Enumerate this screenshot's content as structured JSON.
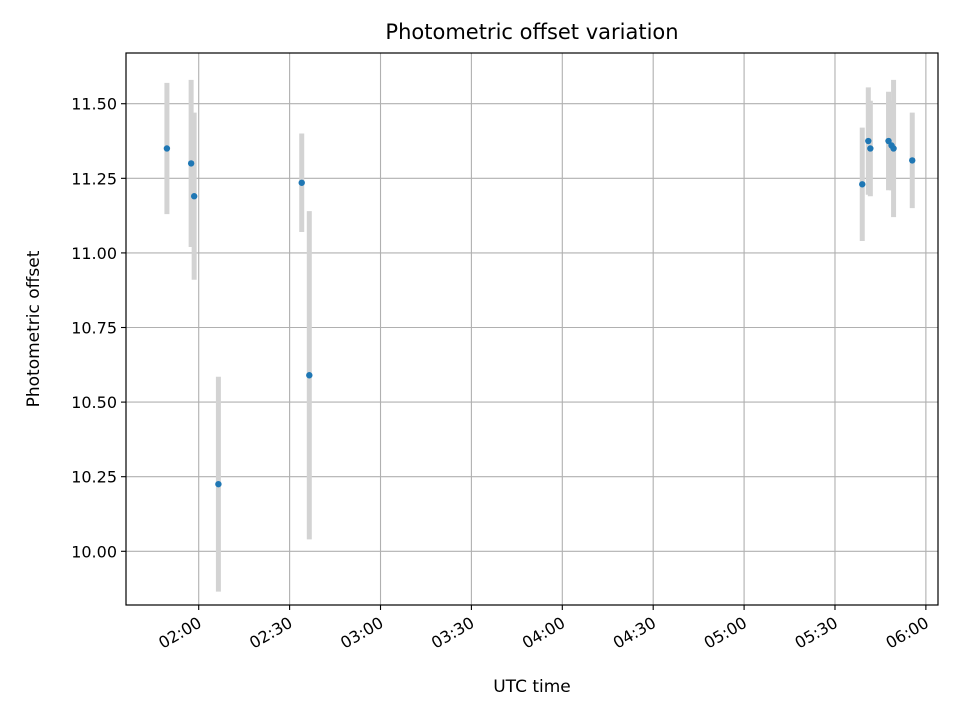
{
  "chart_data": {
    "type": "scatter",
    "title": "Photometric offset variation",
    "xlabel": "UTC time",
    "ylabel": "Photometric offset",
    "grid": true,
    "xlim": [
      "01:36",
      "06:04"
    ],
    "ylim": [
      9.82,
      11.67
    ],
    "x_ticks": [
      "02:00",
      "02:30",
      "03:00",
      "03:30",
      "04:00",
      "04:30",
      "05:00",
      "05:30",
      "06:00"
    ],
    "y_ticks": [
      "10.00",
      "10.25",
      "10.50",
      "10.75",
      "11.00",
      "11.25",
      "11.50"
    ],
    "colors": {
      "marker": "#1f77b4",
      "errorbar": "#d3d3d3",
      "grid": "#b0b0b0"
    },
    "points": [
      {
        "x": "01:49:30",
        "y": 11.35,
        "err": 0.22
      },
      {
        "x": "01:57:30",
        "y": 11.3,
        "err": 0.28
      },
      {
        "x": "01:58:30",
        "y": 11.19,
        "err": 0.28
      },
      {
        "x": "02:06:30",
        "y": 10.225,
        "err": 0.36
      },
      {
        "x": "02:34:00",
        "y": 11.235,
        "err": 0.165
      },
      {
        "x": "02:36:30",
        "y": 10.59,
        "err": 0.55
      },
      {
        "x": "05:39:00",
        "y": 11.23,
        "err": 0.19
      },
      {
        "x": "05:41:00",
        "y": 11.375,
        "err": 0.18
      },
      {
        "x": "05:41:40",
        "y": 11.35,
        "err": 0.16
      },
      {
        "x": "05:47:40",
        "y": 11.375,
        "err": 0.165
      },
      {
        "x": "05:48:40",
        "y": 11.36,
        "err": 0.15
      },
      {
        "x": "05:49:20",
        "y": 11.35,
        "err": 0.23
      },
      {
        "x": "05:55:30",
        "y": 11.31,
        "err": 0.16
      }
    ]
  }
}
